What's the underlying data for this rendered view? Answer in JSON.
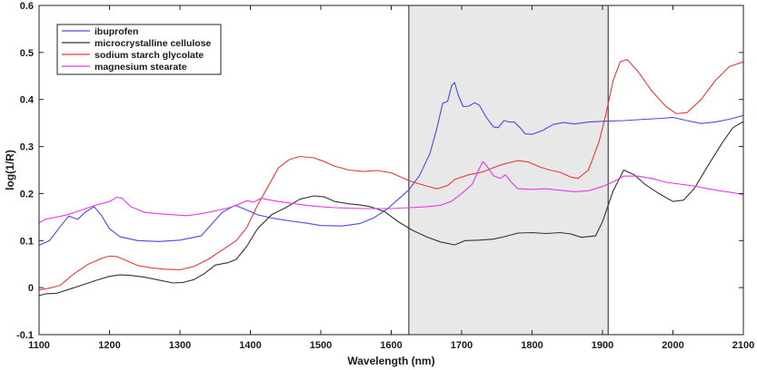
{
  "chart_data": {
    "type": "line",
    "xlabel": "Wavelength (nm)",
    "ylabel": "log(1/R)",
    "xlim": [
      1100,
      2100
    ],
    "ylim": [
      -0.1,
      0.6
    ],
    "x_ticks": [
      1100,
      1200,
      1300,
      1400,
      1500,
      1600,
      1700,
      1800,
      1900,
      2000,
      2100
    ],
    "y_ticks": [
      -0.1,
      0,
      0.1,
      0.2,
      0.3,
      0.4,
      0.5,
      0.6
    ],
    "y_tick_labels": [
      "-0.1",
      "0",
      "0.1",
      "0.2",
      "0.3",
      "0.4",
      "0.5",
      "0.6"
    ],
    "grid": false,
    "legend_position": "top-left",
    "highlight_region": {
      "x_start": 1625,
      "x_end": 1908,
      "color": "#e8e8e8"
    },
    "series": [
      {
        "name": "ibuprofen",
        "color": "#4a4ae6",
        "points": [
          [
            1100,
            0.09
          ],
          [
            1115,
            0.1
          ],
          [
            1130,
            0.13
          ],
          [
            1142,
            0.152
          ],
          [
            1155,
            0.145
          ],
          [
            1165,
            0.16
          ],
          [
            1178,
            0.172
          ],
          [
            1188,
            0.155
          ],
          [
            1200,
            0.125
          ],
          [
            1215,
            0.108
          ],
          [
            1240,
            0.1
          ],
          [
            1270,
            0.098
          ],
          [
            1300,
            0.101
          ],
          [
            1330,
            0.11
          ],
          [
            1345,
            0.135
          ],
          [
            1360,
            0.16
          ],
          [
            1378,
            0.175
          ],
          [
            1390,
            0.168
          ],
          [
            1410,
            0.155
          ],
          [
            1430,
            0.148
          ],
          [
            1455,
            0.142
          ],
          [
            1480,
            0.137
          ],
          [
            1500,
            0.132
          ],
          [
            1530,
            0.131
          ],
          [
            1555,
            0.136
          ],
          [
            1575,
            0.148
          ],
          [
            1595,
            0.168
          ],
          [
            1610,
            0.188
          ],
          [
            1625,
            0.208
          ],
          [
            1640,
            0.238
          ],
          [
            1655,
            0.285
          ],
          [
            1665,
            0.34
          ],
          [
            1673,
            0.392
          ],
          [
            1680,
            0.396
          ],
          [
            1686,
            0.43
          ],
          [
            1690,
            0.436
          ],
          [
            1695,
            0.41
          ],
          [
            1702,
            0.385
          ],
          [
            1710,
            0.386
          ],
          [
            1718,
            0.393
          ],
          [
            1725,
            0.388
          ],
          [
            1735,
            0.362
          ],
          [
            1745,
            0.342
          ],
          [
            1752,
            0.34
          ],
          [
            1760,
            0.355
          ],
          [
            1768,
            0.352
          ],
          [
            1775,
            0.352
          ],
          [
            1783,
            0.34
          ],
          [
            1790,
            0.327
          ],
          [
            1800,
            0.326
          ],
          [
            1815,
            0.334
          ],
          [
            1830,
            0.347
          ],
          [
            1845,
            0.351
          ],
          [
            1860,
            0.348
          ],
          [
            1880,
            0.352
          ],
          [
            1905,
            0.354
          ],
          [
            1930,
            0.355
          ],
          [
            1960,
            0.358
          ],
          [
            1985,
            0.36
          ],
          [
            2000,
            0.362
          ],
          [
            2020,
            0.355
          ],
          [
            2040,
            0.349
          ],
          [
            2060,
            0.352
          ],
          [
            2080,
            0.358
          ],
          [
            2100,
            0.366
          ]
        ]
      },
      {
        "name": "microcrystalline cellulose",
        "color": "#333333",
        "points": [
          [
            1100,
            -0.017
          ],
          [
            1110,
            -0.013
          ],
          [
            1125,
            -0.012
          ],
          [
            1140,
            -0.005
          ],
          [
            1160,
            0.005
          ],
          [
            1180,
            0.015
          ],
          [
            1200,
            0.024
          ],
          [
            1215,
            0.027
          ],
          [
            1230,
            0.026
          ],
          [
            1250,
            0.022
          ],
          [
            1270,
            0.016
          ],
          [
            1290,
            0.01
          ],
          [
            1305,
            0.011
          ],
          [
            1320,
            0.017
          ],
          [
            1335,
            0.03
          ],
          [
            1350,
            0.048
          ],
          [
            1368,
            0.053
          ],
          [
            1380,
            0.06
          ],
          [
            1395,
            0.088
          ],
          [
            1410,
            0.125
          ],
          [
            1430,
            0.155
          ],
          [
            1450,
            0.17
          ],
          [
            1470,
            0.188
          ],
          [
            1490,
            0.195
          ],
          [
            1505,
            0.193
          ],
          [
            1520,
            0.183
          ],
          [
            1540,
            0.178
          ],
          [
            1555,
            0.176
          ],
          [
            1570,
            0.172
          ],
          [
            1590,
            0.162
          ],
          [
            1610,
            0.14
          ],
          [
            1630,
            0.122
          ],
          [
            1650,
            0.108
          ],
          [
            1670,
            0.097
          ],
          [
            1690,
            0.091
          ],
          [
            1705,
            0.1
          ],
          [
            1725,
            0.101
          ],
          [
            1745,
            0.103
          ],
          [
            1760,
            0.108
          ],
          [
            1780,
            0.116
          ],
          [
            1800,
            0.117
          ],
          [
            1820,
            0.115
          ],
          [
            1840,
            0.117
          ],
          [
            1855,
            0.114
          ],
          [
            1870,
            0.107
          ],
          [
            1890,
            0.11
          ],
          [
            1900,
            0.14
          ],
          [
            1915,
            0.205
          ],
          [
            1930,
            0.25
          ],
          [
            1945,
            0.24
          ],
          [
            1960,
            0.22
          ],
          [
            1980,
            0.2
          ],
          [
            2000,
            0.183
          ],
          [
            2015,
            0.186
          ],
          [
            2030,
            0.21
          ],
          [
            2050,
            0.26
          ],
          [
            2070,
            0.308
          ],
          [
            2085,
            0.34
          ],
          [
            2100,
            0.353
          ]
        ]
      },
      {
        "name": "sodium starch glycolate",
        "color": "#e63a3a",
        "points": [
          [
            1100,
            -0.005
          ],
          [
            1115,
            -0.001
          ],
          [
            1130,
            0.005
          ],
          [
            1150,
            0.03
          ],
          [
            1170,
            0.05
          ],
          [
            1190,
            0.063
          ],
          [
            1200,
            0.067
          ],
          [
            1210,
            0.066
          ],
          [
            1220,
            0.06
          ],
          [
            1240,
            0.047
          ],
          [
            1260,
            0.042
          ],
          [
            1280,
            0.039
          ],
          [
            1300,
            0.038
          ],
          [
            1320,
            0.045
          ],
          [
            1340,
            0.06
          ],
          [
            1360,
            0.08
          ],
          [
            1380,
            0.1
          ],
          [
            1395,
            0.128
          ],
          [
            1410,
            0.175
          ],
          [
            1425,
            0.215
          ],
          [
            1440,
            0.255
          ],
          [
            1455,
            0.272
          ],
          [
            1470,
            0.279
          ],
          [
            1490,
            0.276
          ],
          [
            1505,
            0.268
          ],
          [
            1520,
            0.258
          ],
          [
            1540,
            0.25
          ],
          [
            1560,
            0.247
          ],
          [
            1580,
            0.249
          ],
          [
            1600,
            0.244
          ],
          [
            1615,
            0.234
          ],
          [
            1630,
            0.225
          ],
          [
            1650,
            0.216
          ],
          [
            1665,
            0.21
          ],
          [
            1680,
            0.217
          ],
          [
            1690,
            0.23
          ],
          [
            1710,
            0.24
          ],
          [
            1730,
            0.246
          ],
          [
            1745,
            0.255
          ],
          [
            1760,
            0.263
          ],
          [
            1780,
            0.27
          ],
          [
            1795,
            0.267
          ],
          [
            1810,
            0.257
          ],
          [
            1825,
            0.25
          ],
          [
            1840,
            0.245
          ],
          [
            1855,
            0.235
          ],
          [
            1865,
            0.232
          ],
          [
            1880,
            0.25
          ],
          [
            1895,
            0.31
          ],
          [
            1905,
            0.37
          ],
          [
            1915,
            0.44
          ],
          [
            1925,
            0.48
          ],
          [
            1935,
            0.485
          ],
          [
            1950,
            0.46
          ],
          [
            1970,
            0.418
          ],
          [
            1990,
            0.385
          ],
          [
            2005,
            0.37
          ],
          [
            2020,
            0.372
          ],
          [
            2040,
            0.4
          ],
          [
            2060,
            0.44
          ],
          [
            2080,
            0.47
          ],
          [
            2100,
            0.48
          ]
        ]
      },
      {
        "name": "magnesium stearate",
        "color": "#e63ae6",
        "points": [
          [
            1100,
            0.138
          ],
          [
            1110,
            0.146
          ],
          [
            1125,
            0.15
          ],
          [
            1140,
            0.155
          ],
          [
            1160,
            0.165
          ],
          [
            1180,
            0.175
          ],
          [
            1200,
            0.183
          ],
          [
            1210,
            0.192
          ],
          [
            1218,
            0.19
          ],
          [
            1230,
            0.172
          ],
          [
            1250,
            0.16
          ],
          [
            1270,
            0.157
          ],
          [
            1290,
            0.155
          ],
          [
            1310,
            0.153
          ],
          [
            1330,
            0.157
          ],
          [
            1350,
            0.163
          ],
          [
            1370,
            0.17
          ],
          [
            1385,
            0.178
          ],
          [
            1395,
            0.185
          ],
          [
            1405,
            0.182
          ],
          [
            1415,
            0.19
          ],
          [
            1425,
            0.187
          ],
          [
            1440,
            0.183
          ],
          [
            1460,
            0.179
          ],
          [
            1480,
            0.175
          ],
          [
            1500,
            0.172
          ],
          [
            1520,
            0.17
          ],
          [
            1540,
            0.169
          ],
          [
            1560,
            0.168
          ],
          [
            1580,
            0.168
          ],
          [
            1600,
            0.168
          ],
          [
            1625,
            0.17
          ],
          [
            1650,
            0.172
          ],
          [
            1670,
            0.175
          ],
          [
            1685,
            0.183
          ],
          [
            1700,
            0.2
          ],
          [
            1715,
            0.22
          ],
          [
            1725,
            0.253
          ],
          [
            1730,
            0.268
          ],
          [
            1735,
            0.26
          ],
          [
            1745,
            0.238
          ],
          [
            1755,
            0.232
          ],
          [
            1762,
            0.24
          ],
          [
            1770,
            0.225
          ],
          [
            1780,
            0.21
          ],
          [
            1800,
            0.209
          ],
          [
            1820,
            0.21
          ],
          [
            1840,
            0.207
          ],
          [
            1860,
            0.204
          ],
          [
            1880,
            0.206
          ],
          [
            1900,
            0.215
          ],
          [
            1915,
            0.225
          ],
          [
            1930,
            0.237
          ],
          [
            1950,
            0.237
          ],
          [
            1970,
            0.232
          ],
          [
            1990,
            0.224
          ],
          [
            2010,
            0.22
          ],
          [
            2030,
            0.216
          ],
          [
            2050,
            0.21
          ],
          [
            2070,
            0.205
          ],
          [
            2085,
            0.202
          ],
          [
            2100,
            0.198
          ]
        ]
      }
    ]
  }
}
